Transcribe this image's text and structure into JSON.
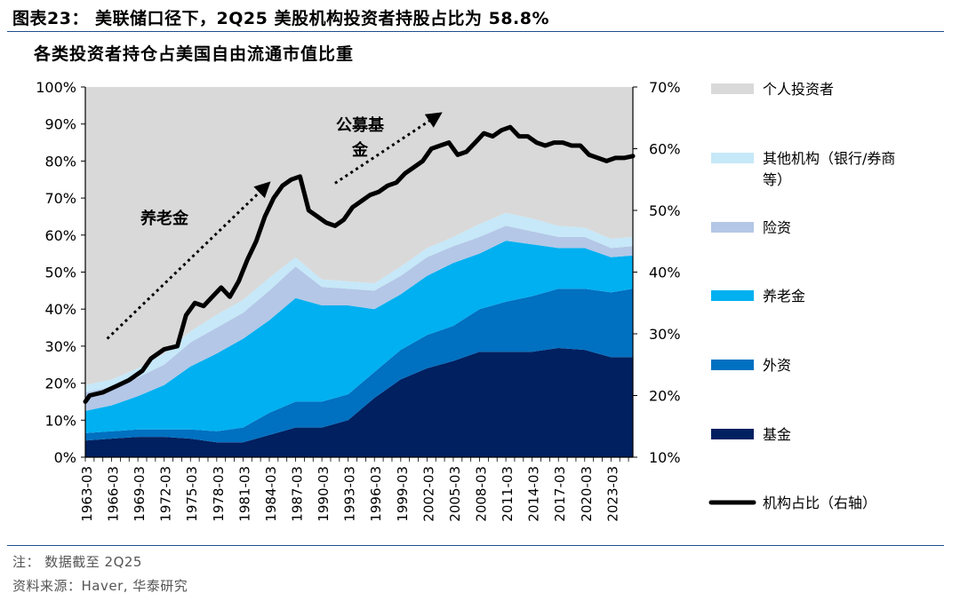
{
  "figure_title": "图表23： 美联储口径下，2Q25 美股机构投资者持股占比为 58.8%",
  "note": "注： 数据截至 2Q25",
  "source": "资料来源：Haver, 华泰研究",
  "colors": {
    "rule": "#1f4e8c",
    "individual": "#d9d9d9",
    "other_inst": "#c6e8f8",
    "insurance": "#b4c7e7",
    "pension": "#00b0f0",
    "foreign": "#0070c0",
    "funds": "#002060",
    "line": "#000000"
  },
  "chart_data": {
    "type": "area",
    "title": "各类投资者持仓占美国自由流通市值比重",
    "ylim_left": [
      0,
      100
    ],
    "ylim_right": [
      10,
      70
    ],
    "left_ticks": [
      "0%",
      "10%",
      "20%",
      "30%",
      "40%",
      "50%",
      "60%",
      "70%",
      "80%",
      "90%",
      "100%"
    ],
    "right_ticks": [
      "10%",
      "20%",
      "30%",
      "40%",
      "50%",
      "60%",
      "70%"
    ],
    "x_ticks": [
      "1963-03",
      "1966-03",
      "1969-03",
      "1972-03",
      "1975-03",
      "1978-03",
      "1981-03",
      "1984-03",
      "1987-03",
      "1990-03",
      "1993-03",
      "1996-03",
      "1999-03",
      "2002-03",
      "2005-03",
      "2008-03",
      "2011-03",
      "2014-03",
      "2017-03",
      "2020-03",
      "2023-03"
    ],
    "x_range": [
      1963.0,
      2025.5
    ],
    "x": [
      1963,
      1966,
      1969,
      1972,
      1975,
      1978,
      1981,
      1984,
      1987,
      1990,
      1993,
      1996,
      1999,
      2002,
      2005,
      2008,
      2011,
      2014,
      2017,
      2020,
      2023,
      2025.5
    ],
    "stacked_series": [
      {
        "name": "基金",
        "values": [
          4.5,
          5.0,
          5.5,
          5.5,
          5.0,
          4.0,
          4.0,
          6.0,
          8.0,
          8.0,
          10.0,
          16.0,
          21.0,
          24.0,
          26.0,
          28.5,
          28.5,
          28.5,
          29.5,
          29.0,
          27.0,
          27.0
        ]
      },
      {
        "name": "外资",
        "values": [
          2.0,
          2.0,
          2.0,
          2.0,
          2.5,
          3.0,
          4.0,
          6.0,
          7.0,
          7.0,
          7.0,
          7.0,
          8.0,
          9.0,
          9.5,
          11.5,
          13.5,
          15.0,
          16.0,
          16.5,
          17.5,
          18.5
        ]
      },
      {
        "name": "养老金",
        "values": [
          6.0,
          7.0,
          9.0,
          12.0,
          17.0,
          21.0,
          24.0,
          25.0,
          28.0,
          26.0,
          24.0,
          17.0,
          15.0,
          16.0,
          17.0,
          15.0,
          16.5,
          14.0,
          11.0,
          11.0,
          9.5,
          9.0
        ]
      },
      {
        "name": "险资",
        "values": [
          5.0,
          5.0,
          5.0,
          5.5,
          6.5,
          7.0,
          7.0,
          8.0,
          8.5,
          5.0,
          4.5,
          5.0,
          5.0,
          5.0,
          4.5,
          4.5,
          4.0,
          3.5,
          3.0,
          3.0,
          2.5,
          2.5
        ]
      },
      {
        "name": "其他机构（银行/券商等）",
        "values": [
          2.0,
          2.0,
          2.5,
          3.0,
          3.0,
          3.5,
          3.5,
          3.5,
          2.5,
          2.0,
          2.0,
          2.0,
          2.5,
          2.5,
          2.5,
          3.5,
          3.5,
          3.5,
          3.0,
          2.5,
          2.5,
          2.5
        ]
      },
      {
        "name": "个人投资者",
        "values": [
          80.5,
          79.0,
          76.0,
          72.0,
          66.0,
          61.5,
          57.5,
          51.5,
          46.0,
          52.0,
          52.5,
          53.0,
          48.5,
          43.5,
          40.5,
          37.0,
          34.0,
          35.5,
          37.5,
          38.0,
          41.0,
          40.5
        ]
      }
    ],
    "line_series": {
      "name": "机构占比（右轴）",
      "axis": "right",
      "x": [
        1963,
        1963.5,
        1965,
        1966.5,
        1968,
        1969.5,
        1970.5,
        1972,
        1973.5,
        1974.5,
        1975.5,
        1976.5,
        1977.5,
        1978.5,
        1979.5,
        1980.5,
        1981.5,
        1982.5,
        1983.5,
        1984.5,
        1985.5,
        1986.5,
        1987.5,
        1988.5,
        1989.5,
        1990.5,
        1991.5,
        1992.5,
        1993.5,
        1994.5,
        1995.5,
        1996.5,
        1997.5,
        1998.5,
        1999.5,
        2000.5,
        2001.5,
        2002.5,
        2003.5,
        2004.5,
        2005.5,
        2006.5,
        2007.5,
        2008.5,
        2009.5,
        2010.5,
        2011.5,
        2012.5,
        2013.5,
        2014.5,
        2015.5,
        2016.5,
        2017.5,
        2018.5,
        2019.5,
        2020.5,
        2021.5,
        2022.5,
        2023.5,
        2024.5,
        2025.5
      ],
      "values": [
        19,
        20,
        20.5,
        21.5,
        22.5,
        24,
        26,
        27.5,
        28,
        33,
        35,
        34.5,
        36,
        37.5,
        36,
        38.5,
        42,
        45,
        49,
        52,
        54,
        55,
        55.5,
        50,
        49,
        48,
        47.5,
        48.5,
        50.5,
        51.5,
        52.5,
        53,
        54,
        54.5,
        56,
        57,
        58,
        60,
        60.5,
        61,
        59,
        59.5,
        61,
        62.5,
        62,
        63,
        63.5,
        62,
        62,
        61,
        60.5,
        61,
        61,
        60.5,
        60.5,
        59,
        58.5,
        58,
        58.5,
        58.5,
        58.8
      ]
    },
    "annotations": [
      {
        "text": "养老金",
        "from": [
          1965.5,
          32
        ],
        "to": [
          1983.5,
          73
        ]
      },
      {
        "text": "公募基金",
        "from": [
          1991.5,
          74
        ],
        "to": [
          2003,
          92
        ]
      }
    ],
    "legend_position": "right",
    "legend": [
      "个人投资者",
      "其他机构（银行/券商等）",
      "险资",
      "养老金",
      "外资",
      "基金",
      "机构占比（右轴）"
    ]
  }
}
